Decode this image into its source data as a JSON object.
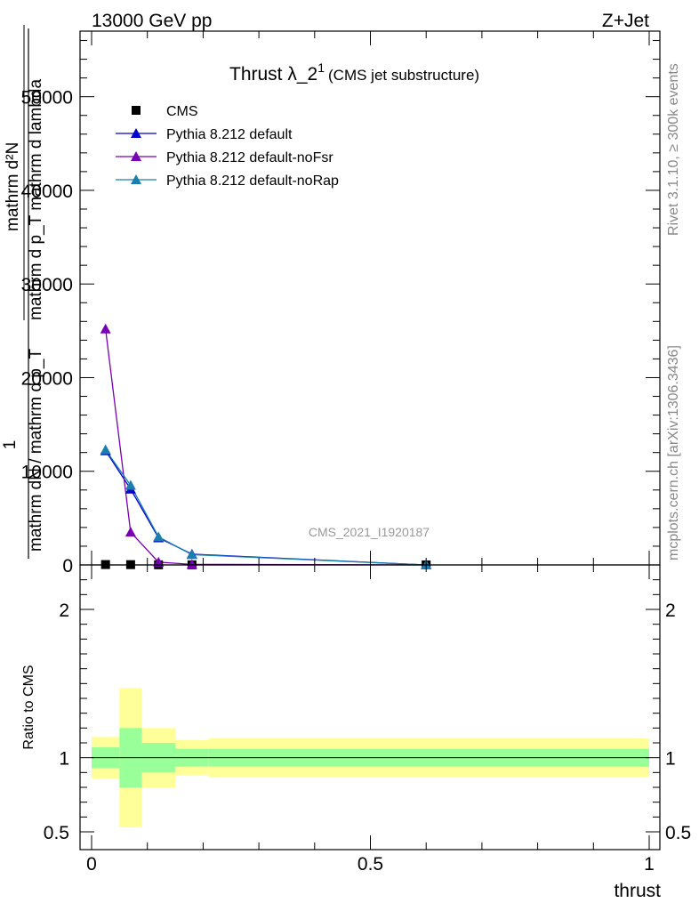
{
  "header": {
    "energy": "13000 GeV pp",
    "process": "Z+Jet"
  },
  "side_labels": {
    "rivet": "Rivet 3.1.10, ≥ 300k events",
    "source": "mcplots.cern.ch [arXiv:1306.3436]"
  },
  "chart_data": [
    {
      "type": "line",
      "panel": "main",
      "title": "Thrust λ_2",
      "title_superscript": "1",
      "subtitle": "(CMS jet substructure)",
      "watermark": "CMS_2021_I1920187",
      "ylabel_numerator": "mathrm d²N",
      "ylabel_numerator_denominator": "mathrm d p_T mathrm d lambda",
      "ylabel_prefactor": "1",
      "ylabel_denominator": "mathrm dN / mathrm d p_T",
      "ylim": [
        0,
        57000
      ],
      "xlim": [
        0,
        1
      ],
      "y_ticks": [
        0,
        10000,
        20000,
        30000,
        40000,
        50000
      ],
      "y_tick_labels": [
        "0",
        "10000",
        "20000",
        "30000",
        "40000",
        "50000"
      ],
      "legend_position": "top-left",
      "series": [
        {
          "name": "CMS",
          "color": "#000000",
          "marker": "square",
          "points": [
            {
              "x": 0.025,
              "y": 40
            },
            {
              "x": 0.07,
              "y": 30
            },
            {
              "x": 0.12,
              "y": 15
            },
            {
              "x": 0.18,
              "y": 10
            },
            {
              "x": 0.6,
              "y": 2
            }
          ]
        },
        {
          "name": "Pythia 8.212 default",
          "color": "#0000cc",
          "marker": "triangle",
          "points": [
            {
              "x": 0.025,
              "y": 12200
            },
            {
              "x": 0.07,
              "y": 8100
            },
            {
              "x": 0.12,
              "y": 2900
            },
            {
              "x": 0.18,
              "y": 1150
            },
            {
              "x": 0.6,
              "y": 0
            }
          ]
        },
        {
          "name": "Pythia 8.212 default-noFsr",
          "color": "#7a00b3",
          "marker": "triangle",
          "points": [
            {
              "x": 0.025,
              "y": 25200
            },
            {
              "x": 0.07,
              "y": 3500
            },
            {
              "x": 0.12,
              "y": 300
            },
            {
              "x": 0.18,
              "y": 60
            },
            {
              "x": 0.6,
              "y": 0
            }
          ]
        },
        {
          "name": "Pythia 8.212 default-noRap",
          "color": "#1a7fae",
          "marker": "triangle",
          "points": [
            {
              "x": 0.025,
              "y": 12300
            },
            {
              "x": 0.07,
              "y": 8500
            },
            {
              "x": 0.12,
              "y": 3000
            },
            {
              "x": 0.18,
              "y": 1100
            },
            {
              "x": 0.6,
              "y": 0
            }
          ]
        }
      ]
    },
    {
      "type": "area",
      "panel": "ratio",
      "ylabel": "Ratio to CMS",
      "xlabel": "thrust",
      "ylim": [
        0.38,
        2.3
      ],
      "xlim": [
        0,
        1
      ],
      "x_ticks": [
        0,
        0.5,
        1
      ],
      "x_tick_labels": [
        "0",
        "0.5",
        "1"
      ],
      "y_ticks": [
        0.5,
        1,
        2
      ],
      "y_tick_labels": [
        "0.5",
        "1",
        "2"
      ],
      "reference_line": 1,
      "bands": [
        {
          "x0": 0.0,
          "x1": 0.05,
          "stat_lo": 0.93,
          "stat_hi": 1.07,
          "total_lo": 0.86,
          "total_hi": 1.14
        },
        {
          "x0": 0.05,
          "x1": 0.09,
          "stat_lo": 0.8,
          "stat_hi": 1.2,
          "total_lo": 0.53,
          "total_hi": 1.47
        },
        {
          "x0": 0.09,
          "x1": 0.15,
          "stat_lo": 0.9,
          "stat_hi": 1.1,
          "total_lo": 0.8,
          "total_hi": 1.2
        },
        {
          "x0": 0.15,
          "x1": 0.21,
          "stat_lo": 0.94,
          "stat_hi": 1.06,
          "total_lo": 0.88,
          "total_hi": 1.12
        },
        {
          "x0": 0.21,
          "x1": 1.0,
          "stat_lo": 0.94,
          "stat_hi": 1.06,
          "total_lo": 0.87,
          "total_hi": 1.13
        }
      ],
      "stat_color": "#99ff99",
      "total_color": "#ffff99"
    }
  ]
}
